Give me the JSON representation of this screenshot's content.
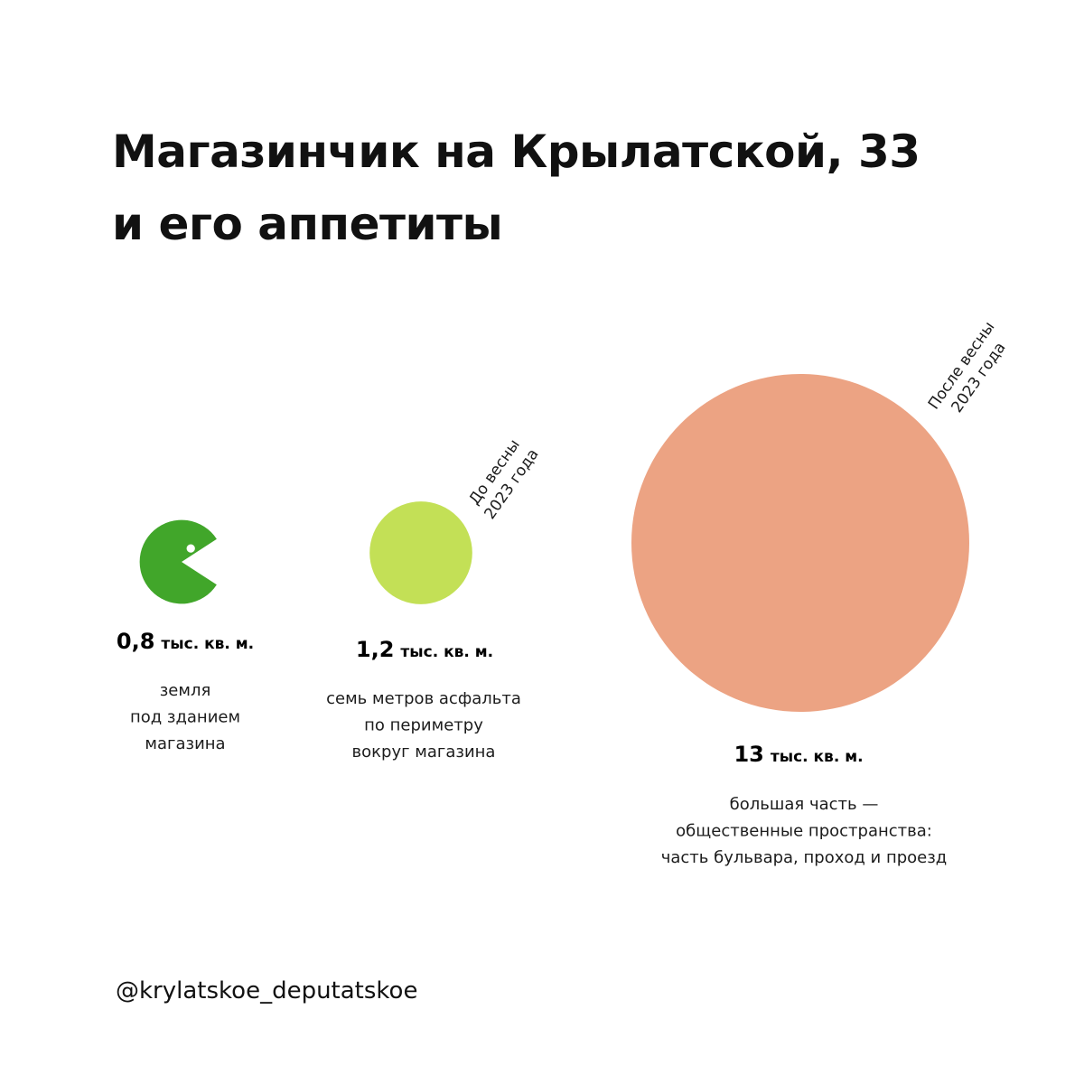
{
  "title": [
    "Магазинчик на Крылатской, 33",
    "и его аппетиты"
  ],
  "handle": "@krylatskoe_deputatskoe",
  "colors": {
    "land": "#41a62a",
    "before": "#c3e056",
    "after": "#eca383",
    "eye": "#ffffff"
  },
  "icons": {
    "land": "pacman-icon"
  },
  "chart_data": {
    "type": "bubble",
    "items": [
      {
        "value": 0.8,
        "value_label": "0,8",
        "unit": "тыс. кв. м.",
        "description": [
          "земля",
          "под зданием",
          "магазина"
        ],
        "period": [],
        "color": "#41a62a",
        "shape": "pacman"
      },
      {
        "value": 1.2,
        "value_label": "1,2",
        "unit": "тыс. кв. м.",
        "description": [
          "семь метров асфальта",
          "по периметру",
          "вокруг магазина"
        ],
        "period": [
          "До весны",
          "2023 года"
        ],
        "color": "#c3e056",
        "shape": "circle"
      },
      {
        "value": 13,
        "value_label": "13",
        "unit": "тыс. кв. м.",
        "description": [
          "большая часть —",
          "общественные пространства:",
          "часть бульвара, проход и проезд"
        ],
        "period": [
          "После весны",
          "2023 года"
        ],
        "color": "#eca383",
        "shape": "circle"
      }
    ]
  }
}
